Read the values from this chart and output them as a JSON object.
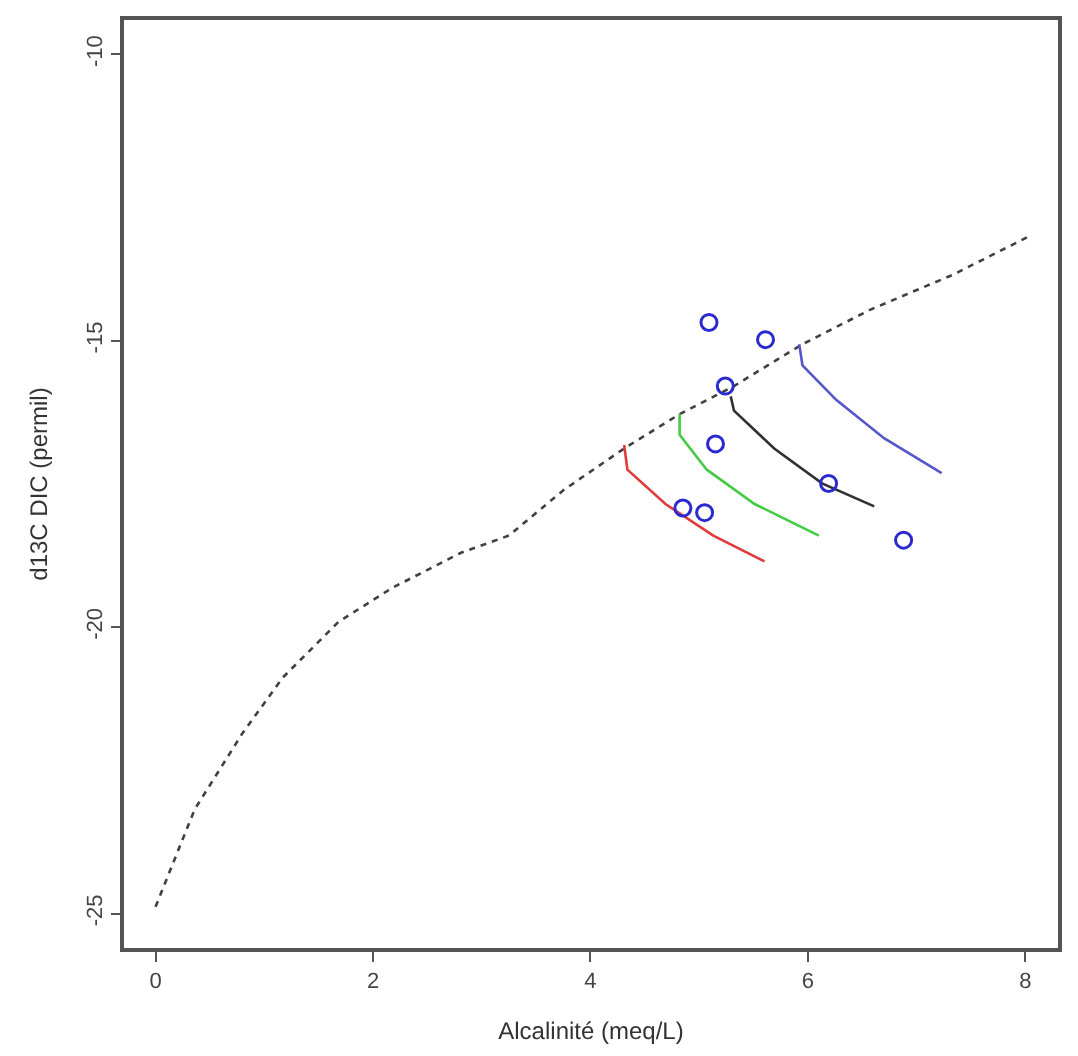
{
  "chart_data": {
    "type": "line",
    "xlabel": "Alcalinité (meq/L)",
    "ylabel": "d13C DIC (permil)",
    "xlim": [
      -0.29,
      8.3
    ],
    "ylim": [
      -25.6,
      -9.4
    ],
    "xticks": [
      0,
      2,
      4,
      6,
      8
    ],
    "yticks": [
      -10,
      -15,
      -20,
      -25
    ],
    "series": [
      {
        "color": "#404040",
        "line_style": "dotted",
        "x": [
          0,
          0.36,
          0.8,
          1.17,
          1.68,
          2.18,
          2.81,
          3.25,
          3.75,
          4.31,
          4.82,
          5.32,
          5.95,
          6.57,
          7.33,
          8.02
        ],
        "values": [
          -24.88,
          -23.18,
          -21.85,
          -20.88,
          -19.91,
          -19.31,
          -18.7,
          -18.4,
          -17.61,
          -16.88,
          -16.28,
          -15.79,
          -15.06,
          -14.46,
          -13.85,
          -13.19
        ]
      },
      {
        "color": "#e03a3a",
        "line_style": "solid",
        "x": [
          4.31,
          4.34,
          4.69,
          5.13,
          5.6
        ],
        "values": [
          -16.82,
          -17.25,
          -17.85,
          -18.4,
          -18.85
        ]
      },
      {
        "color": "#44cc44",
        "line_style": "solid",
        "x": [
          4.82,
          4.82,
          5.07,
          5.51,
          6.1
        ],
        "values": [
          -16.28,
          -16.64,
          -17.25,
          -17.85,
          -18.4
        ]
      },
      {
        "color": "#303030",
        "line_style": "solid",
        "x": [
          5.29,
          5.32,
          5.69,
          6.13,
          6.61
        ],
        "values": [
          -15.97,
          -16.22,
          -16.88,
          -17.49,
          -17.89
        ]
      },
      {
        "color": "#5555cc",
        "line_style": "solid",
        "x": [
          5.92,
          5.95,
          6.26,
          6.7,
          7.23
        ],
        "values": [
          -15.06,
          -15.43,
          -16.03,
          -16.7,
          -17.31
        ]
      },
      {
        "type": "scatter",
        "color": "#2a2ad0",
        "marker": "circle",
        "x": [
          5.09,
          5.61,
          5.24,
          5.15,
          6.19,
          4.85,
          5.05,
          6.88
        ],
        "values": [
          -14.68,
          -14.98,
          -15.79,
          -16.8,
          -17.49,
          -17.92,
          -18.0,
          -18.48
        ]
      }
    ]
  }
}
